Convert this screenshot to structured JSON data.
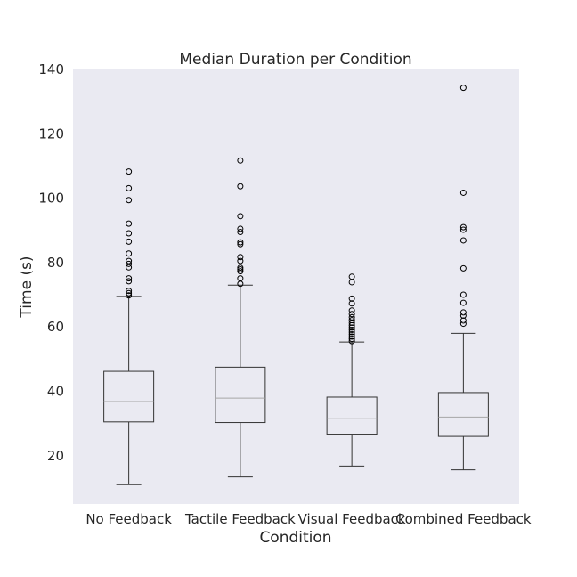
{
  "chart_data": {
    "type": "box",
    "title": "Median Duration per Condition",
    "xlabel": "Condition",
    "ylabel": "Time (s)",
    "ylim": [
      5,
      140
    ],
    "yticks": [
      20,
      40,
      60,
      80,
      100,
      120,
      140
    ],
    "grid": false,
    "categories": [
      "No Feedback",
      "Tactile Feedback",
      "Visual Feedback",
      "Combined Feedback"
    ],
    "boxes": [
      {
        "whisker_low": 11,
        "q1": 30.5,
        "median": 36.8,
        "q3": 46.2,
        "whisker_high": 69.5,
        "outliers": [
          69.8,
          70.5,
          71.2,
          74.2,
          75.1,
          78.5,
          79.6,
          80.5,
          82.8,
          86.5,
          89.1,
          92.1,
          99.4,
          103.1,
          108.3
        ]
      },
      {
        "whisker_low": 13.4,
        "q1": 30.3,
        "median": 37.9,
        "q3": 47.5,
        "whisker_high": 73,
        "outliers": [
          73.4,
          75.1,
          77.3,
          77.9,
          78.4,
          80.5,
          81.7,
          85.7,
          86.3,
          89.5,
          90.5,
          94.4,
          103.7,
          111.7
        ]
      },
      {
        "whisker_low": 16.8,
        "q1": 26.7,
        "median": 31.5,
        "q3": 38.2,
        "whisker_high": 55.3,
        "outliers": [
          55.6,
          56.3,
          57,
          57.7,
          58.4,
          59.1,
          59.8,
          60.5,
          61.3,
          62.1,
          63,
          64,
          65.1,
          67.3,
          68.8,
          73.9,
          75.6
        ]
      },
      {
        "whisker_low": 15.6,
        "q1": 26,
        "median": 32,
        "q3": 39.6,
        "whisker_high": 58,
        "outliers": [
          61,
          62,
          63.5,
          64.5,
          67.5,
          70,
          78.2,
          86.9,
          90.2,
          91,
          101.7,
          134.3
        ]
      }
    ],
    "colors": {
      "plot_bg": "#eaeaf2",
      "box_edge": "#333333",
      "median": "#a6a6a6",
      "text": "#262626"
    }
  }
}
